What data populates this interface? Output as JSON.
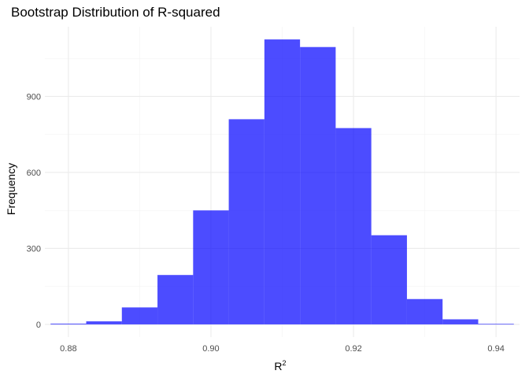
{
  "chart_data": {
    "type": "bar",
    "title": "Bootstrap Distribution of R-squared",
    "xlabel": "R",
    "xlabel_superscript": "2",
    "ylabel": "Frequency",
    "xlim": [
      0.8767,
      0.9433
    ],
    "ylim": [
      -50,
      1175
    ],
    "x_ticks": [
      0.88,
      0.9,
      0.92,
      0.94
    ],
    "x_tick_labels": [
      "0.88",
      "0.90",
      "0.92",
      "0.94"
    ],
    "y_ticks": [
      0,
      300,
      600,
      900
    ],
    "y_tick_labels": [
      "0",
      "300",
      "600",
      "900"
    ],
    "bin_width": 0.005,
    "bins": [
      {
        "x0": 0.8775,
        "x1": 0.8825,
        "count": 3
      },
      {
        "x0": 0.8825,
        "x1": 0.8875,
        "count": 12
      },
      {
        "x0": 0.8875,
        "x1": 0.8925,
        "count": 67
      },
      {
        "x0": 0.8925,
        "x1": 0.8975,
        "count": 195
      },
      {
        "x0": 0.8975,
        "x1": 0.9025,
        "count": 450
      },
      {
        "x0": 0.9025,
        "x1": 0.9075,
        "count": 810
      },
      {
        "x0": 0.9075,
        "x1": 0.9125,
        "count": 1125
      },
      {
        "x0": 0.9125,
        "x1": 0.9175,
        "count": 1095
      },
      {
        "x0": 0.9175,
        "x1": 0.9225,
        "count": 775
      },
      {
        "x0": 0.9225,
        "x1": 0.9275,
        "count": 352
      },
      {
        "x0": 0.9275,
        "x1": 0.9325,
        "count": 100
      },
      {
        "x0": 0.9325,
        "x1": 0.9375,
        "count": 20
      },
      {
        "x0": 0.9375,
        "x1": 0.9425,
        "count": 2
      }
    ],
    "bar_color": "#0000FF",
    "bar_opacity": 0.7,
    "grid": true,
    "legend": "none"
  }
}
